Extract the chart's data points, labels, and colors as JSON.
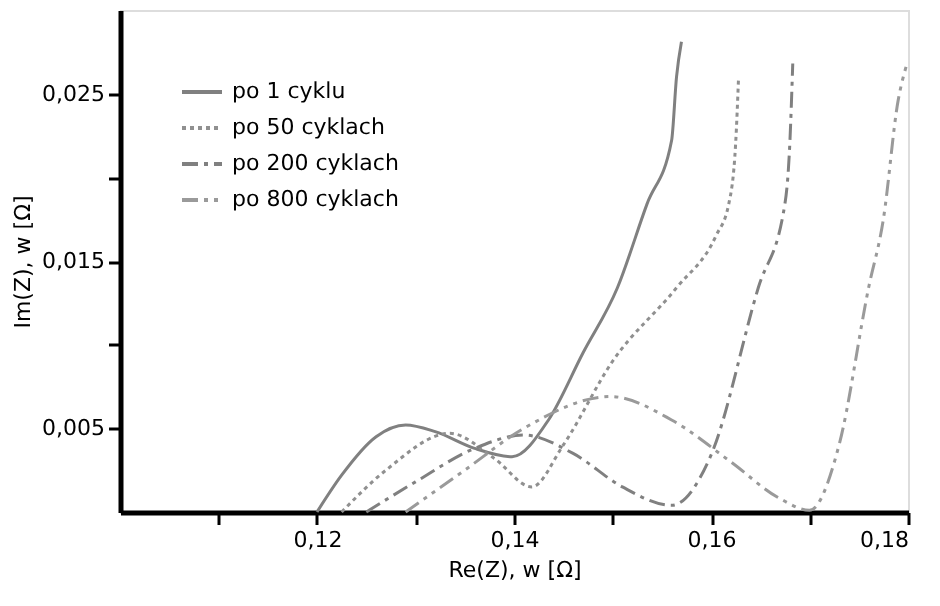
{
  "chart_data": {
    "type": "line",
    "xlabel": "Re(Z), w [Ω]",
    "ylabel": "Im(Z), w [Ω]",
    "xlim": [
      0.1,
      0.18
    ],
    "xticks": [
      {
        "value": 0.11,
        "label": null
      },
      {
        "value": 0.12,
        "label": "0,12"
      },
      {
        "value": 0.13,
        "label": null
      },
      {
        "value": 0.14,
        "label": "0,14"
      },
      {
        "value": 0.15,
        "label": null
      },
      {
        "value": 0.16,
        "label": "0,16"
      },
      {
        "value": 0.17,
        "label": null
      },
      {
        "value": 0.18,
        "label": "0,18"
      }
    ],
    "ylim": [
      0,
      0.03
    ],
    "yticks": [
      {
        "value": 0.005,
        "label": "0,005"
      },
      {
        "value": 0.01,
        "label": null
      },
      {
        "value": 0.015,
        "label": "0,015"
      },
      {
        "value": 0.02,
        "label": null
      },
      {
        "value": 0.025,
        "label": "0,025"
      }
    ],
    "grid": false,
    "legend": "top left",
    "marker": "none",
    "series": [
      {
        "name": "po 1 cyklu",
        "color": "#808080",
        "line_style": "solid",
        "x": [
          0.12,
          0.1225,
          0.126,
          0.129,
          0.132,
          0.136,
          0.1398,
          0.1435,
          0.147,
          0.1505,
          0.1535,
          0.156,
          0.1565,
          0.157
        ],
        "values": [
          0,
          0.0022,
          0.0045,
          0.0052,
          0.0048,
          0.0038,
          0.0033,
          0.0055,
          0.0095,
          0.0134,
          0.0184,
          0.0222,
          0.026,
          0.0281
        ]
      },
      {
        "name": "po 50 cyklach",
        "color": "#909090",
        "line_style": "dotted",
        "x": [
          0.1225,
          0.127,
          0.1335,
          0.138,
          0.1418,
          0.145,
          0.15,
          0.1565,
          0.1605,
          0.1618,
          0.1625,
          0.1628
        ],
        "values": [
          0,
          0.0025,
          0.0047,
          0.0032,
          0.0015,
          0.004,
          0.009,
          0.0134,
          0.0165,
          0.0184,
          0.022,
          0.026
        ]
      },
      {
        "name": "po 200 cyklach",
        "color": "#808080",
        "line_style": "dashdot",
        "x": [
          0.125,
          0.13,
          0.136,
          0.141,
          0.146,
          0.151,
          0.156,
          0.16,
          0.1648,
          0.1675,
          0.168,
          0.1683
        ],
        "values": [
          0,
          0.0018,
          0.0038,
          0.0046,
          0.0035,
          0.0015,
          0.0004,
          0.0034,
          0.0134,
          0.0184,
          0.022,
          0.0268
        ]
      },
      {
        "name": "po 800 cyklach",
        "color": "#9a9a9a",
        "line_style": "dashdotdot",
        "x": [
          0.129,
          0.135,
          0.141,
          0.1498,
          0.156,
          0.162,
          0.167,
          0.17,
          0.173,
          0.176,
          0.1775,
          0.179,
          0.1798
        ],
        "values": [
          0,
          0.0025,
          0.005,
          0.0069,
          0.0055,
          0.003,
          0.0008,
          0.0001,
          0.004,
          0.0134,
          0.0175,
          0.0246,
          0.0266
        ]
      }
    ]
  }
}
